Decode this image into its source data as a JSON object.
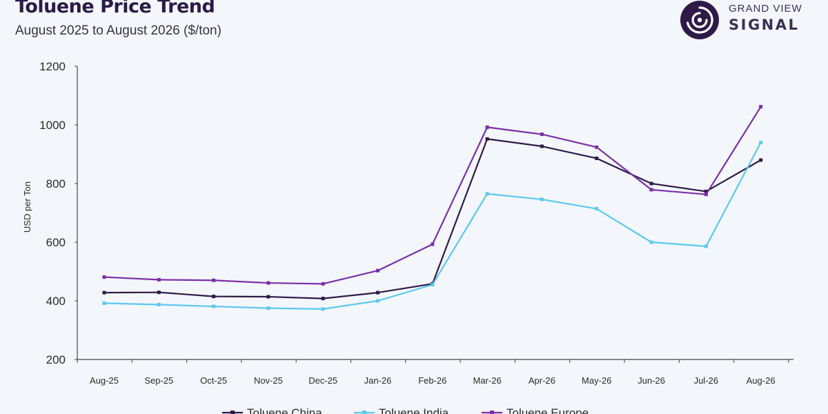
{
  "header": {
    "title": "Toluene Price Trend",
    "subtitle": "August 2025 to August 2026 ($/ton)"
  },
  "logo": {
    "line1": "GRAND VIEW",
    "line2": "SIGNAL",
    "icon": "signal-swirl-icon",
    "color": "#2e1a47"
  },
  "chart_data": {
    "type": "line",
    "categories": [
      "Aug-25",
      "Sep-25",
      "Oct-25",
      "Nov-25",
      "Dec-25",
      "Jan-26",
      "Feb-26",
      "Mar-26",
      "Apr-26",
      "May-26",
      "Jun-26",
      "Jul-26",
      "Aug-26"
    ],
    "series": [
      {
        "name": "Toluene China",
        "color": "#2e1a47",
        "values": [
          428,
          429,
          415,
          414,
          408,
          428,
          458,
          952,
          927,
          886,
          800,
          773,
          880
        ]
      },
      {
        "name": "Toluene India",
        "color": "#5bc8ef",
        "values": [
          392,
          387,
          381,
          375,
          372,
          400,
          455,
          765,
          746,
          714,
          600,
          586,
          940
        ]
      },
      {
        "name": "Toluene Europe",
        "color": "#7b2ea8",
        "values": [
          481,
          472,
          470,
          461,
          458,
          503,
          593,
          992,
          968,
          924,
          779,
          763,
          1062
        ]
      }
    ],
    "ylabel": "USD per Ton",
    "xlabel": "",
    "ylim": [
      200,
      1200
    ],
    "yticks": [
      200,
      400,
      600,
      800,
      1000,
      1200
    ],
    "grid": false,
    "legend": "bottom"
  }
}
